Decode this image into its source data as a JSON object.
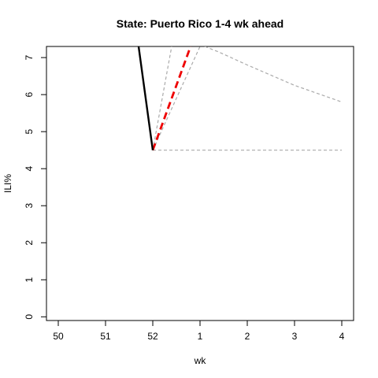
{
  "chart_data": {
    "type": "line",
    "title": "State: Puerto Rico 1-4 wk ahead",
    "xlabel": "wk",
    "ylabel": "ILI%",
    "x_tick_labels": [
      "50",
      "51",
      "52",
      "1",
      "2",
      "3",
      "4"
    ],
    "y_ticks": [
      0,
      1,
      2,
      3,
      4,
      5,
      6,
      7
    ],
    "xlim": [
      -0.25,
      6.25
    ],
    "ylim": [
      -0.1,
      7.3
    ],
    "grid": false,
    "series": [
      {
        "style": "observed",
        "color": "#000000",
        "x": [
          2,
          1.7
        ],
        "y": [
          4.5,
          7.3
        ]
      },
      {
        "style": "forecast",
        "color": "#ee0000",
        "x": [
          2,
          2.8
        ],
        "y": [
          4.5,
          7.3
        ]
      },
      {
        "style": "band",
        "color": "#aaaaaa",
        "x": [
          2,
          2.4
        ],
        "y": [
          4.5,
          7.3
        ]
      },
      {
        "style": "band",
        "color": "#aaaaaa",
        "x": [
          2,
          3
        ],
        "y": [
          4.5,
          7.3
        ]
      },
      {
        "style": "band",
        "color": "#aaaaaa",
        "x": [
          3.1,
          3.4,
          4,
          5,
          6
        ],
        "y": [
          7.3,
          7.15,
          6.8,
          6.25,
          5.8
        ]
      },
      {
        "style": "band",
        "color": "#aaaaaa",
        "x": [
          2,
          3,
          4,
          5,
          6
        ],
        "y": [
          4.5,
          4.5,
          4.5,
          4.5,
          4.5
        ]
      }
    ]
  }
}
